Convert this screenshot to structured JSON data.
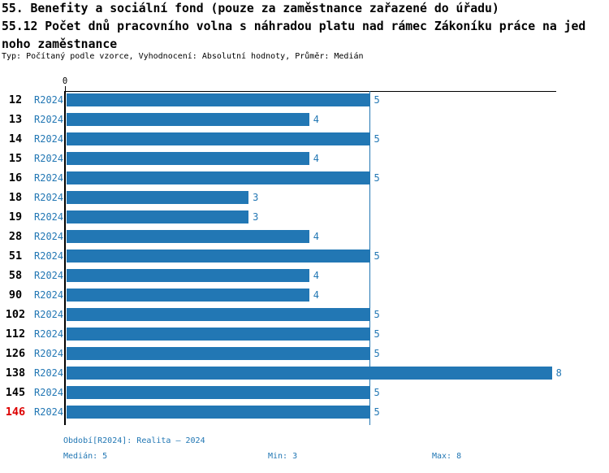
{
  "header": {
    "title_line1": "55. Benefity a sociální fond (pouze za zaměstnance zařazené do úřadu)",
    "title_line2": "55.12 Počet dnů pracovního volna s náhradou platu nad rámec Zákoníku práce na jed",
    "title_line3": "noho zaměstnance",
    "meta": "Typ: Počítaný podle vzorce, Vyhodnocení: Absolutní hodnoty, Průměr: Medián"
  },
  "chart_data": {
    "type": "bar",
    "orientation": "horizontal",
    "title": "55.12 Počet dnů pracovního volna s náhradou platu nad rámec Zákoníku práce na jednoho zaměstnance",
    "zero_tick_label": "0",
    "xlim": [
      0,
      8.1
    ],
    "grid": false,
    "categories": [
      "12",
      "13",
      "14",
      "15",
      "16",
      "18",
      "19",
      "28",
      "51",
      "58",
      "90",
      "102",
      "112",
      "126",
      "138",
      "145",
      "146"
    ],
    "series": [
      {
        "name": "R2024",
        "values": [
          5,
          4,
          5,
          4,
          5,
          3,
          3,
          4,
          5,
          4,
          4,
          5,
          5,
          5,
          8,
          5,
          5
        ]
      }
    ],
    "value_labels": [
      "5",
      "4",
      "5",
      "4",
      "5",
      "3",
      "3",
      "4",
      "5",
      "4",
      "4",
      "5",
      "5",
      "5",
      "8",
      "5",
      "5"
    ],
    "highlighted_category": "146",
    "median_value": 5,
    "colors": {
      "bar": "#2277b4",
      "blue_text": "#2277b4",
      "median_line": "#2277b4",
      "highlight_text": "#dd0000",
      "axis": "#000000"
    }
  },
  "footer": {
    "period": "Období[R2024]: Realita – 2024",
    "median": "Medián: 5",
    "min": "Min: 3",
    "max": "Max: 8"
  }
}
